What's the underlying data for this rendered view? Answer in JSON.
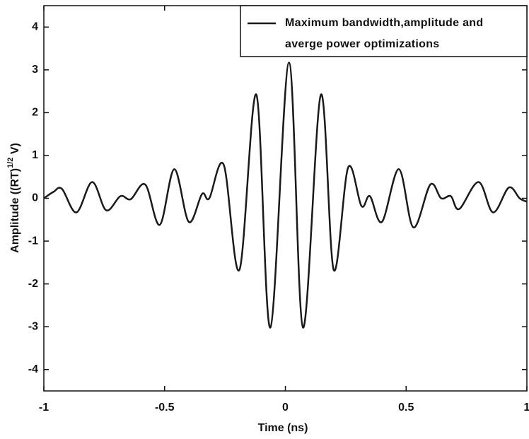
{
  "chart_data": {
    "type": "line",
    "xlabel": "Time (ns)",
    "ylabel": "Amplitude ((RT)",
    "ylabel_sup": "1/2",
    "ylabel_end": " V)",
    "x": [
      -1,
      -0.96,
      -0.925,
      -0.865,
      -0.8,
      -0.742,
      -0.683,
      -0.64,
      -0.58,
      -0.52,
      -0.46,
      -0.4,
      -0.345,
      -0.315,
      -0.255,
      -0.19,
      -0.12,
      -0.062,
      0.015,
      0.073,
      0.147,
      0.2,
      0.26,
      0.315,
      0.35,
      0.4,
      0.47,
      0.53,
      0.6,
      0.645,
      0.685,
      0.72,
      0.8,
      0.86,
      0.925,
      0.97,
      1.0
    ],
    "series": [
      {
        "name": "Maximum bandwidth,amplitude and averge power optimizations",
        "color": "#1a1a1a",
        "values": [
          0,
          0.15,
          0.22,
          -0.33,
          0.38,
          -0.28,
          0.05,
          -0.02,
          0.32,
          -0.62,
          0.68,
          -0.55,
          0.1,
          0.0,
          0.78,
          -1.67,
          2.42,
          -3.02,
          3.17,
          -3.02,
          2.42,
          -1.67,
          0.72,
          -0.18,
          0.05,
          -0.55,
          0.68,
          -0.68,
          0.32,
          0.0,
          0.05,
          -0.25,
          0.38,
          -0.33,
          0.25,
          0.0,
          -0.08
        ]
      }
    ],
    "xlim": [
      -1,
      1
    ],
    "xticks": [
      -1,
      -0.5,
      0,
      0.5,
      1
    ],
    "ylim": [
      -4.5,
      4.5
    ],
    "yticks": [
      -4,
      -3,
      -2,
      -1,
      0,
      1,
      2,
      3,
      4
    ],
    "legend": "upper right"
  }
}
